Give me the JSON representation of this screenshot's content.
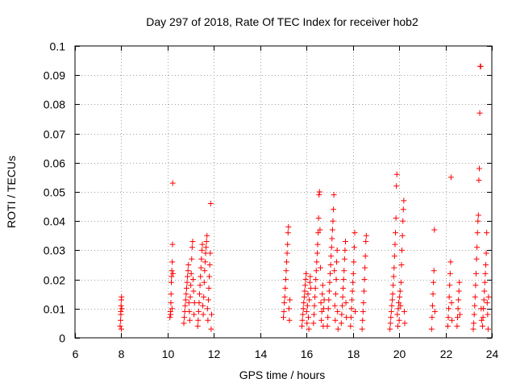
{
  "chart_data": {
    "type": "scatter",
    "title": "Day 297 of 2018, Rate Of TEC Index for receiver hob2",
    "xlabel": "GPS time / hours",
    "ylabel": "ROTI / TECUs",
    "xlim": [
      6,
      24
    ],
    "ylim": [
      0,
      0.1
    ],
    "xticks": [
      6,
      8,
      10,
      12,
      14,
      16,
      18,
      20,
      22,
      24
    ],
    "yticks": [
      0,
      0.01,
      0.02,
      0.03,
      0.04,
      0.05,
      0.06,
      0.07,
      0.08,
      0.09,
      0.1
    ],
    "xtick_labels": [
      "6",
      "8",
      "10",
      "12",
      "14",
      "16",
      "18",
      "20",
      "22",
      "24"
    ],
    "ytick_labels": [
      "0",
      "0.01",
      "0.02",
      "0.03",
      "0.04",
      "0.05",
      "0.06",
      "0.07",
      "0.08",
      "0.09",
      "0.1"
    ],
    "grid": true,
    "marker": "+",
    "color": "#ff0000",
    "series": [
      {
        "name": "ROTI",
        "points": [
          [
            7.95,
            0.004
          ],
          [
            7.97,
            0.006
          ],
          [
            7.98,
            0.009
          ],
          [
            7.99,
            0.011
          ],
          [
            8.0,
            0.013
          ],
          [
            8.01,
            0.014
          ],
          [
            8.0,
            0.003
          ],
          [
            7.98,
            0.008
          ],
          [
            8.02,
            0.01
          ],
          [
            10.1,
            0.007
          ],
          [
            10.12,
            0.009
          ],
          [
            10.14,
            0.012
          ],
          [
            10.15,
            0.015
          ],
          [
            10.16,
            0.019
          ],
          [
            10.17,
            0.021
          ],
          [
            10.18,
            0.023
          ],
          [
            10.2,
            0.026
          ],
          [
            10.21,
            0.032
          ],
          [
            10.22,
            0.053
          ],
          [
            10.13,
            0.008
          ],
          [
            10.19,
            0.01
          ],
          [
            10.23,
            0.022
          ],
          [
            10.7,
            0.005
          ],
          [
            10.72,
            0.007
          ],
          [
            10.74,
            0.009
          ],
          [
            10.76,
            0.011
          ],
          [
            10.78,
            0.013
          ],
          [
            10.8,
            0.015
          ],
          [
            10.82,
            0.017
          ],
          [
            10.84,
            0.019
          ],
          [
            10.86,
            0.021
          ],
          [
            10.88,
            0.023
          ],
          [
            10.9,
            0.025
          ],
          [
            10.92,
            0.012
          ],
          [
            10.94,
            0.009
          ],
          [
            10.96,
            0.006
          ],
          [
            10.98,
            0.014
          ],
          [
            11.0,
            0.018
          ],
          [
            11.02,
            0.022
          ],
          [
            11.04,
            0.027
          ],
          [
            11.06,
            0.031
          ],
          [
            11.08,
            0.033
          ],
          [
            11.1,
            0.02
          ],
          [
            11.12,
            0.016
          ],
          [
            11.14,
            0.008
          ],
          [
            11.16,
            0.012
          ],
          [
            11.3,
            0.004
          ],
          [
            11.32,
            0.006
          ],
          [
            11.34,
            0.009
          ],
          [
            11.36,
            0.012
          ],
          [
            11.38,
            0.015
          ],
          [
            11.4,
            0.018
          ],
          [
            11.42,
            0.021
          ],
          [
            11.44,
            0.024
          ],
          [
            11.46,
            0.027
          ],
          [
            11.48,
            0.03
          ],
          [
            11.5,
            0.032
          ],
          [
            11.52,
            0.011
          ],
          [
            11.54,
            0.008
          ],
          [
            11.56,
            0.014
          ],
          [
            11.58,
            0.019
          ],
          [
            11.6,
            0.023
          ],
          [
            11.62,
            0.026
          ],
          [
            11.64,
            0.029
          ],
          [
            11.66,
            0.031
          ],
          [
            11.68,
            0.033
          ],
          [
            11.7,
            0.035
          ],
          [
            11.72,
            0.01
          ],
          [
            11.74,
            0.006
          ],
          [
            11.76,
            0.013
          ],
          [
            11.78,
            0.017
          ],
          [
            11.8,
            0.021
          ],
          [
            11.82,
            0.025
          ],
          [
            11.84,
            0.029
          ],
          [
            11.86,
            0.046
          ],
          [
            11.88,
            0.003
          ],
          [
            11.9,
            0.008
          ],
          [
            15.0,
            0.007
          ],
          [
            15.02,
            0.009
          ],
          [
            15.04,
            0.012
          ],
          [
            15.06,
            0.014
          ],
          [
            15.08,
            0.017
          ],
          [
            15.1,
            0.02
          ],
          [
            15.12,
            0.023
          ],
          [
            15.14,
            0.026
          ],
          [
            15.16,
            0.029
          ],
          [
            15.18,
            0.032
          ],
          [
            15.2,
            0.036
          ],
          [
            15.22,
            0.038
          ],
          [
            15.24,
            0.01
          ],
          [
            15.26,
            0.006
          ],
          [
            15.28,
            0.013
          ],
          [
            15.8,
            0.004
          ],
          [
            15.82,
            0.006
          ],
          [
            15.84,
            0.008
          ],
          [
            15.86,
            0.01
          ],
          [
            15.88,
            0.012
          ],
          [
            15.9,
            0.014
          ],
          [
            15.92,
            0.016
          ],
          [
            15.94,
            0.018
          ],
          [
            15.96,
            0.02
          ],
          [
            15.98,
            0.022
          ],
          [
            16.0,
            0.009
          ],
          [
            16.02,
            0.005
          ],
          [
            16.04,
            0.011
          ],
          [
            16.06,
            0.015
          ],
          [
            16.08,
            0.007
          ],
          [
            16.1,
            0.003
          ],
          [
            16.12,
            0.013
          ],
          [
            16.14,
            0.019
          ],
          [
            16.16,
            0.021
          ],
          [
            16.18,
            0.017
          ],
          [
            16.3,
            0.005
          ],
          [
            16.32,
            0.008
          ],
          [
            16.34,
            0.011
          ],
          [
            16.36,
            0.014
          ],
          [
            16.38,
            0.017
          ],
          [
            16.4,
            0.02
          ],
          [
            16.42,
            0.023
          ],
          [
            16.44,
            0.026
          ],
          [
            16.46,
            0.029
          ],
          [
            16.48,
            0.032
          ],
          [
            16.5,
            0.036
          ],
          [
            16.52,
            0.041
          ],
          [
            16.54,
            0.049
          ],
          [
            16.56,
            0.05
          ],
          [
            16.58,
            0.037
          ],
          [
            16.6,
            0.024
          ],
          [
            16.62,
            0.012
          ],
          [
            16.64,
            0.006
          ],
          [
            16.66,
            0.009
          ],
          [
            16.68,
            0.015
          ],
          [
            16.7,
            0.018
          ],
          [
            16.72,
            0.004
          ],
          [
            16.74,
            0.01
          ],
          [
            16.76,
            0.013
          ],
          [
            16.9,
            0.004
          ],
          [
            16.92,
            0.007
          ],
          [
            16.94,
            0.01
          ],
          [
            16.96,
            0.013
          ],
          [
            16.98,
            0.016
          ],
          [
            17.0,
            0.019
          ],
          [
            17.02,
            0.022
          ],
          [
            17.04,
            0.025
          ],
          [
            17.06,
            0.028
          ],
          [
            17.08,
            0.031
          ],
          [
            17.1,
            0.034
          ],
          [
            17.12,
            0.037
          ],
          [
            17.14,
            0.04
          ],
          [
            17.16,
            0.044
          ],
          [
            17.18,
            0.049
          ],
          [
            17.2,
            0.023
          ],
          [
            17.22,
            0.011
          ],
          [
            17.24,
            0.006
          ],
          [
            17.26,
            0.015
          ],
          [
            17.28,
            0.02
          ],
          [
            17.3,
            0.026
          ],
          [
            17.32,
            0.03
          ],
          [
            17.34,
            0.009
          ],
          [
            17.36,
            0.003
          ],
          [
            17.5,
            0.005
          ],
          [
            17.52,
            0.008
          ],
          [
            17.54,
            0.011
          ],
          [
            17.56,
            0.014
          ],
          [
            17.58,
            0.017
          ],
          [
            17.6,
            0.02
          ],
          [
            17.62,
            0.023
          ],
          [
            17.64,
            0.027
          ],
          [
            17.66,
            0.03
          ],
          [
            17.68,
            0.033
          ],
          [
            17.7,
            0.012
          ],
          [
            17.72,
            0.007
          ],
          [
            17.9,
            0.004
          ],
          [
            17.92,
            0.007
          ],
          [
            17.94,
            0.01
          ],
          [
            17.96,
            0.013
          ],
          [
            17.98,
            0.016
          ],
          [
            18.0,
            0.019
          ],
          [
            18.02,
            0.022
          ],
          [
            18.04,
            0.026
          ],
          [
            18.06,
            0.031
          ],
          [
            18.08,
            0.036
          ],
          [
            18.1,
            0.009
          ],
          [
            18.4,
            0.003
          ],
          [
            18.42,
            0.006
          ],
          [
            18.44,
            0.009
          ],
          [
            18.46,
            0.012
          ],
          [
            18.48,
            0.016
          ],
          [
            18.5,
            0.02
          ],
          [
            18.52,
            0.024
          ],
          [
            18.54,
            0.028
          ],
          [
            18.56,
            0.033
          ],
          [
            18.58,
            0.035
          ],
          [
            19.6,
            0.003
          ],
          [
            19.62,
            0.005
          ],
          [
            19.64,
            0.007
          ],
          [
            19.66,
            0.009
          ],
          [
            19.68,
            0.011
          ],
          [
            19.7,
            0.013
          ],
          [
            19.72,
            0.015
          ],
          [
            19.74,
            0.018
          ],
          [
            19.76,
            0.021
          ],
          [
            19.78,
            0.024
          ],
          [
            19.8,
            0.028
          ],
          [
            19.82,
            0.032
          ],
          [
            19.84,
            0.036
          ],
          [
            19.86,
            0.041
          ],
          [
            19.88,
            0.052
          ],
          [
            19.9,
            0.056
          ],
          [
            19.92,
            0.008
          ],
          [
            19.94,
            0.004
          ],
          [
            19.96,
            0.01
          ],
          [
            19.98,
            0.012
          ],
          [
            20.0,
            0.006
          ],
          [
            20.02,
            0.014
          ],
          [
            20.04,
            0.016
          ],
          [
            20.06,
            0.011
          ],
          [
            20.08,
            0.019
          ],
          [
            20.1,
            0.025
          ],
          [
            20.12,
            0.03
          ],
          [
            20.14,
            0.035
          ],
          [
            20.16,
            0.04
          ],
          [
            20.18,
            0.044
          ],
          [
            20.2,
            0.047
          ],
          [
            20.22,
            0.009
          ],
          [
            20.24,
            0.005
          ],
          [
            21.4,
            0.003
          ],
          [
            21.42,
            0.007
          ],
          [
            21.44,
            0.011
          ],
          [
            21.46,
            0.015
          ],
          [
            21.48,
            0.019
          ],
          [
            21.5,
            0.023
          ],
          [
            21.52,
            0.037
          ],
          [
            21.54,
            0.009
          ],
          [
            22.1,
            0.004
          ],
          [
            22.12,
            0.007
          ],
          [
            22.14,
            0.01
          ],
          [
            22.16,
            0.014
          ],
          [
            22.18,
            0.018
          ],
          [
            22.2,
            0.022
          ],
          [
            22.22,
            0.026
          ],
          [
            22.24,
            0.055
          ],
          [
            22.26,
            0.012
          ],
          [
            22.28,
            0.006
          ],
          [
            22.5,
            0.004
          ],
          [
            22.52,
            0.007
          ],
          [
            22.54,
            0.01
          ],
          [
            22.56,
            0.013
          ],
          [
            22.58,
            0.016
          ],
          [
            22.6,
            0.019
          ],
          [
            22.62,
            0.008
          ],
          [
            23.2,
            0.003
          ],
          [
            23.22,
            0.005
          ],
          [
            23.24,
            0.008
          ],
          [
            23.26,
            0.011
          ],
          [
            23.28,
            0.014
          ],
          [
            23.3,
            0.018
          ],
          [
            23.32,
            0.022
          ],
          [
            23.34,
            0.027
          ],
          [
            23.36,
            0.031
          ],
          [
            23.38,
            0.036
          ],
          [
            23.4,
            0.04
          ],
          [
            23.42,
            0.042
          ],
          [
            23.44,
            0.054
          ],
          [
            23.46,
            0.058
          ],
          [
            23.48,
            0.077
          ],
          [
            23.5,
            0.093
          ],
          [
            23.52,
            0.093
          ],
          [
            23.54,
            0.01
          ],
          [
            23.56,
            0.006
          ],
          [
            23.6,
            0.004
          ],
          [
            23.62,
            0.007
          ],
          [
            23.64,
            0.01
          ],
          [
            23.66,
            0.013
          ],
          [
            23.68,
            0.016
          ],
          [
            23.7,
            0.019
          ],
          [
            23.72,
            0.022
          ],
          [
            23.74,
            0.025
          ],
          [
            23.76,
            0.029
          ],
          [
            23.78,
            0.036
          ],
          [
            23.8,
            0.012
          ],
          [
            23.82,
            0.008
          ],
          [
            23.84,
            0.003
          ],
          [
            23.86,
            0.014
          ]
        ]
      }
    ]
  }
}
